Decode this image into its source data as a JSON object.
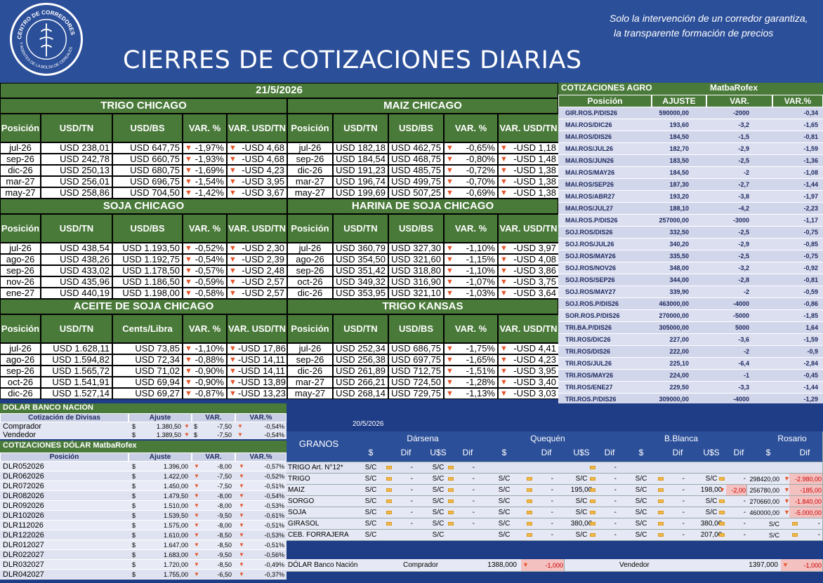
{
  "header": {
    "title": "CIERRES DE COTIZACIONES DIARIAS",
    "slogan_line1": "Solo la intervención de un corredor garantiza,",
    "slogan_line2": "la transparente  formación de precios",
    "logo_text_top": "CENTRO DE CORREDORES",
    "logo_text_bottom": "Y AGENTES DE LA BOLSA DE CEREALES"
  },
  "date": "21/5/2026",
  "sections": {
    "trigo": {
      "title": "TRIGO CHICAGO",
      "headers": [
        "Posición",
        "USD/TN",
        "USD/BS",
        "VAR. %",
        "VAR. USD/TN"
      ],
      "rows": [
        [
          "jul-26",
          "USD 238,01",
          "USD 647,75",
          "-1,97%",
          "-USD 4,68"
        ],
        [
          "sep-26",
          "USD 242,78",
          "USD 660,75",
          "-1,93%",
          "-USD 4,68"
        ],
        [
          "dic-26",
          "USD 250,13",
          "USD 680,75",
          "-1,69%",
          "-USD 4,23"
        ],
        [
          "mar-27",
          "USD 256,01",
          "USD 696,75",
          "-1,54%",
          "-USD 3,95"
        ],
        [
          "may-27",
          "USD 258,86",
          "USD 704,50",
          "-1,42%",
          "-USD 3,67"
        ]
      ]
    },
    "maiz": {
      "title": "MAIZ CHICAGO",
      "headers": [
        "Posición",
        "USD/TN",
        "USD/BS",
        "VAR. %",
        "VAR. USD/TN"
      ],
      "rows": [
        [
          "jul-26",
          "USD 182,18",
          "USD 462,75",
          "-0,65%",
          "-USD 1,18"
        ],
        [
          "sep-26",
          "USD 184,54",
          "USD 468,75",
          "-0,80%",
          "-USD 1,48"
        ],
        [
          "dic-26",
          "USD 191,23",
          "USD 485,75",
          "-0,72%",
          "-USD 1,38"
        ],
        [
          "mar-27",
          "USD 196,74",
          "USD 499,75",
          "-0,70%",
          "-USD 1,38"
        ],
        [
          "may-27",
          "USD 199,69",
          "USD 507,25",
          "-0,69%",
          "-USD 1,38"
        ]
      ]
    },
    "soja": {
      "title": "SOJA CHICAGO",
      "headers": [
        "Posición",
        "USD/TN",
        "USD/BS",
        "VAR. %",
        "VAR. USD/TN"
      ],
      "rows": [
        [
          "jul-26",
          "USD 438,54",
          "USD 1.193,50",
          "-0,52%",
          "-USD 2,30"
        ],
        [
          "ago-26",
          "USD 438,26",
          "USD 1.192,75",
          "-0,54%",
          "-USD 2,39"
        ],
        [
          "sep-26",
          "USD 433,02",
          "USD 1.178,50",
          "-0,57%",
          "-USD 2,48"
        ],
        [
          "nov-26",
          "USD 435,96",
          "USD 1.186,50",
          "-0,59%",
          "-USD 2,57"
        ],
        [
          "ene-27",
          "USD 440,19",
          "USD 1.198,00",
          "-0,58%",
          "-USD 2,57"
        ]
      ]
    },
    "harina": {
      "title": "HARINA DE SOJA CHICAGO",
      "headers": [
        "Posición",
        "USD/TN",
        "USD/BS",
        "VAR. %",
        "VAR. USD/TN"
      ],
      "rows": [
        [
          "jul-26",
          "USD 360,79",
          "USD 327,30",
          "-1,10%",
          "-USD 3,97"
        ],
        [
          "ago-26",
          "USD 354,50",
          "USD 321,60",
          "-1,15%",
          "-USD 4,08"
        ],
        [
          "sep-26",
          "USD 351,42",
          "USD 318,80",
          "-1,10%",
          "-USD 3,86"
        ],
        [
          "oct-26",
          "USD 349,32",
          "USD 316,90",
          "-1,07%",
          "-USD 3,75"
        ],
        [
          "dic-26",
          "USD 353,95",
          "USD 321,10",
          "-1,03%",
          "-USD 3,64"
        ]
      ]
    },
    "aceite": {
      "title": "ACEITE DE SOJA CHICAGO",
      "headers": [
        "Posición",
        "USD/TN",
        "Cents/Libra",
        "VAR. %",
        "VAR. USD/TN"
      ],
      "rows": [
        [
          "jul-26",
          "USD 1.628,11",
          "USD 73,85",
          "-1,10%",
          "-USD 17,86"
        ],
        [
          "ago-26",
          "USD 1.594,82",
          "USD 72,34",
          "-0,88%",
          "-USD 14,11"
        ],
        [
          "sep-26",
          "USD 1.565,72",
          "USD 71,02",
          "-0,90%",
          "-USD 14,11"
        ],
        [
          "oct-26",
          "USD 1.541,91",
          "USD 69,94",
          "-0,90%",
          "-USD 13,89"
        ],
        [
          "dic-26",
          "USD 1.527,14",
          "USD 69,27",
          "-0,87%",
          "-USD 13,23"
        ]
      ]
    },
    "kansas": {
      "title": "TRIGO KANSAS",
      "headers": [
        "Posición",
        "USD/TN",
        "USD/BS",
        "VAR. %",
        "VAR. USD/TN"
      ],
      "rows": [
        [
          "jul-26",
          "USD 252,34",
          "USD 686,75",
          "-1,75%",
          "-USD 4,41"
        ],
        [
          "sep-26",
          "USD 256,38",
          "USD 697,75",
          "-1,65%",
          "-USD 4,23"
        ],
        [
          "dic-26",
          "USD 261,89",
          "USD 712,75",
          "-1,51%",
          "-USD 3,95"
        ],
        [
          "mar-27",
          "USD 266,21",
          "USD 724,50",
          "-1,28%",
          "-USD 3,40"
        ],
        [
          "may-27",
          "USD 268,14",
          "USD 729,75",
          "-1,13%",
          "-USD 3,03"
        ]
      ]
    }
  },
  "agro": {
    "title": "COTIZACIONES AGRO",
    "source": "MatbaRofex",
    "headers": [
      "Posición",
      "AJUSTE",
      "VAR.",
      "VAR.%"
    ],
    "rows": [
      [
        "GIR.ROS.P/DIS26",
        "590000,00",
        "-2000",
        "-0,34"
      ],
      [
        "MAI.ROS/DIC26",
        "193,60",
        "-3,2",
        "-1,65"
      ],
      [
        "MAI.ROS/DIS26",
        "184,50",
        "-1,5",
        "-0,81"
      ],
      [
        "MAI.ROS/JUL26",
        "182,70",
        "-2,9",
        "-1,59"
      ],
      [
        "MAI.ROS/JUN26",
        "183,50",
        "-2,5",
        "-1,36"
      ],
      [
        "MAI.ROS/MAY26",
        "184,50",
        "-2",
        "-1,08"
      ],
      [
        "MAI.ROS/SEP26",
        "187,30",
        "-2,7",
        "-1,44"
      ],
      [
        "MAI.ROS/ABR27",
        "193,20",
        "-3,8",
        "-1,97"
      ],
      [
        "MAI.ROS/JUL27",
        "188,10",
        "-4,2",
        "-2,23"
      ],
      [
        "MAI.ROS.P/DIS26",
        "257000,00",
        "-3000",
        "-1,17"
      ],
      [
        "SOJ.ROS/DIS26",
        "332,50",
        "-2,5",
        "-0,75"
      ],
      [
        "SOJ.ROS/JUL26",
        "340,20",
        "-2,9",
        "-0,85"
      ],
      [
        "SOJ.ROS/MAY26",
        "335,50",
        "-2,5",
        "-0,75"
      ],
      [
        "SOJ.ROS/NOV26",
        "348,00",
        "-3,2",
        "-0,92"
      ],
      [
        "SOJ.ROS/SEP26",
        "344,00",
        "-2,8",
        "-0,81"
      ],
      [
        "SOJ.ROS/MAY27",
        "339,90",
        "-2",
        "-0,59"
      ],
      [
        "SOJ.ROS.P/DIS26",
        "463000,00",
        "-4000",
        "-0,86"
      ],
      [
        "SOR.ROS.P/DIS26",
        "270000,00",
        "-5000",
        "-1,85"
      ],
      [
        "TRI.BA.P/DIS26",
        "305000,00",
        "5000",
        "1,64"
      ],
      [
        "TRI.ROS/DIC26",
        "227,00",
        "-3,6",
        "-1,59"
      ],
      [
        "TRI.ROS/DIS26",
        "222,00",
        "-2",
        "-0,9"
      ],
      [
        "TRI.ROS/JUL26",
        "225,10",
        "-6,4",
        "-2,84"
      ],
      [
        "TRI.ROS/MAY26",
        "224,00",
        "-1",
        "-0,45"
      ],
      [
        "TRI.ROS/ENE27",
        "229,50",
        "-3,3",
        "-1,44"
      ],
      [
        "TRI.ROS.P/DIS26",
        "309000,00",
        "-4000",
        "-1,29"
      ]
    ]
  },
  "dolar_banco": {
    "title": "DÓLAR BANCO NACIÓN",
    "headers": [
      "Cotización de Divisas",
      "Ajuste",
      "VAR.",
      "VAR.%"
    ],
    "rows": [
      [
        "Comprador",
        "$",
        "1.380,50",
        "$",
        "-7,50",
        "-0,54%"
      ],
      [
        "Vendedor",
        "$",
        "1.389,50",
        "$",
        "-7,50",
        "-0,54%"
      ]
    ]
  },
  "dolar_matba": {
    "title": "COTIZACIONES DÓLAR MatbaRofex",
    "headers": [
      "Posición",
      "Ajuste",
      "VAR.",
      "VAR.%"
    ],
    "rows": [
      [
        "DLR052026",
        "1.396,00",
        "-8,00",
        "-0,57%"
      ],
      [
        "DLR062026",
        "1.422,00",
        "-7,50",
        "-0,52%"
      ],
      [
        "DLR072026",
        "1.450,00",
        "-7,50",
        "-0,51%"
      ],
      [
        "DLR082026",
        "1.479,50",
        "-8,00",
        "-0,54%"
      ],
      [
        "DLR092026",
        "1.510,00",
        "-8,00",
        "-0,53%"
      ],
      [
        "DLR102026",
        "1.539,50",
        "-9,50",
        "-0,61%"
      ],
      [
        "DLR112026",
        "1.575,00",
        "-8,00",
        "-0,51%"
      ],
      [
        "DLR122026",
        "1.610,00",
        "-8,50",
        "-0,53%"
      ],
      [
        "DLR012027",
        "1.647,00",
        "-8,50",
        "-0,51%"
      ],
      [
        "DLR022027",
        "1.683,00",
        "-9,50",
        "-0,56%"
      ],
      [
        "DLR032027",
        "1.720,00",
        "-8,50",
        "-0,49%"
      ],
      [
        "DLR042027",
        "1.755,00",
        "-6,50",
        "-0,37%"
      ]
    ],
    "currency": "$"
  },
  "granos": {
    "date": "20/5/2026",
    "title": "GRANOS",
    "ports": [
      "Dársena",
      "Quequén",
      "B.Blanca",
      "Rosario"
    ],
    "sub": [
      "$",
      "Dif",
      "U$S",
      "Dif"
    ],
    "rosario_sub": [
      "$",
      "Dif"
    ],
    "rows": [
      {
        "name": "TRIGO Art. N°12*",
        "d": [
          "S/C",
          "-",
          "S/C",
          "-"
        ],
        "q": [
          "",
          "",
          "",
          "-"
        ],
        "b": [
          "",
          "",
          "",
          ""
        ],
        "r": [
          "",
          ""
        ]
      },
      {
        "name": "TRIGO",
        "d": [
          "S/C",
          "-",
          "S/C",
          "-"
        ],
        "q": [
          "S/C",
          "-",
          "S/C",
          "-"
        ],
        "b": [
          "S/C",
          "-",
          "S/C",
          "-"
        ],
        "r": [
          "298420,00",
          "-2.980,00"
        ]
      },
      {
        "name": "MAIZ",
        "d": [
          "S/C",
          "-",
          "S/C",
          "-"
        ],
        "q": [
          "S/C",
          "-",
          "195,00",
          "-"
        ],
        "b": [
          "S/C",
          "-",
          "198,00",
          "-2,00"
        ],
        "r": [
          "256780,00",
          "-185,00"
        ]
      },
      {
        "name": "SORGO",
        "d": [
          "S/C",
          "-",
          "S/C",
          "-"
        ],
        "q": [
          "S/C",
          "-",
          "S/C",
          "-"
        ],
        "b": [
          "S/C",
          "-",
          "S/C",
          "-"
        ],
        "r": [
          "270660,00",
          "-1.840,00"
        ]
      },
      {
        "name": "SOJA",
        "d": [
          "S/C",
          "-",
          "S/C",
          "-"
        ],
        "q": [
          "S/C",
          "-",
          "S/C",
          "-"
        ],
        "b": [
          "S/C",
          "-",
          "S/C",
          "-"
        ],
        "r": [
          "460000,00",
          "-5.000,00"
        ]
      },
      {
        "name": "GIRASOL",
        "d": [
          "S/C",
          "-",
          "S/C",
          "-"
        ],
        "q": [
          "S/C",
          "-",
          "380,00",
          "-"
        ],
        "b": [
          "S/C",
          "-",
          "380,00",
          "-"
        ],
        "r": [
          "S/C",
          "-"
        ]
      },
      {
        "name": "CEB. FORRAJERA",
        "d": [
          "S/C",
          "",
          "S/C",
          ""
        ],
        "q": [
          "S/C",
          "-",
          "S/C",
          "-"
        ],
        "b": [
          "S/C",
          "-",
          "207,00",
          "-"
        ],
        "r": [
          "S/C",
          "-"
        ]
      }
    ],
    "footer": {
      "label": "DÓLAR Banco Nación",
      "comprador_label": "Comprador",
      "comprador": "1388,000",
      "comprador_var": "-1,000",
      "vendedor_label": "Vendedor",
      "vendedor": "1397,000",
      "vendedor_var": "-1,000"
    }
  },
  "colors": {
    "blue": "#2c4f9a",
    "green": "#4a7a3a",
    "arrow": "#e4552b"
  }
}
